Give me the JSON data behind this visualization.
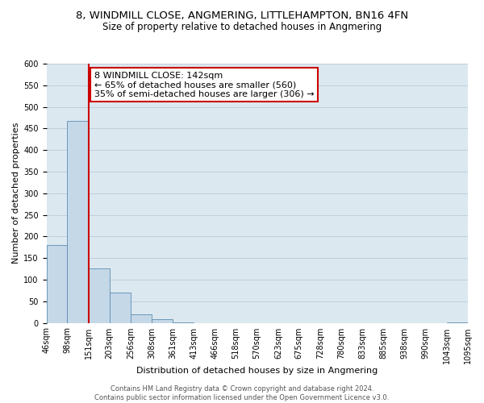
{
  "title1": "8, WINDMILL CLOSE, ANGMERING, LITTLEHAMPTON, BN16 4FN",
  "title2": "Size of property relative to detached houses in Angmering",
  "xlabel": "Distribution of detached houses by size in Angmering",
  "ylabel": "Number of detached properties",
  "bin_edges": [
    46,
    98,
    151,
    203,
    256,
    308,
    361,
    413,
    466,
    518,
    570,
    623,
    675,
    728,
    780,
    833,
    885,
    938,
    990,
    1043,
    1095
  ],
  "bin_labels": [
    "46sqm",
    "98sqm",
    "151sqm",
    "203sqm",
    "256sqm",
    "308sqm",
    "361sqm",
    "413sqm",
    "466sqm",
    "518sqm",
    "570sqm",
    "623sqm",
    "675sqm",
    "728sqm",
    "780sqm",
    "833sqm",
    "885sqm",
    "938sqm",
    "990sqm",
    "1043sqm",
    "1095sqm"
  ],
  "bar_heights": [
    180,
    468,
    126,
    70,
    20,
    8,
    2,
    0,
    0,
    0,
    0,
    0,
    0,
    0,
    0,
    0,
    0,
    0,
    0,
    2
  ],
  "bar_color": "#c5d8e8",
  "bar_edge_color": "#5a8db0",
  "ylim": [
    0,
    600
  ],
  "yticks": [
    0,
    50,
    100,
    150,
    200,
    250,
    300,
    350,
    400,
    450,
    500,
    550,
    600
  ],
  "property_line_x": 151,
  "property_line_color": "#cc0000",
  "annotation_line1": "8 WINDMILL CLOSE: 142sqm",
  "annotation_line2": "← 65% of detached houses are smaller (560)",
  "annotation_line3": "35% of semi-detached houses are larger (306) →",
  "annotation_edge_color": "#cc0000",
  "footer1": "Contains HM Land Registry data © Crown copyright and database right 2024.",
  "footer2": "Contains public sector information licensed under the Open Government Licence v3.0.",
  "plot_background": "#dce8f0",
  "grid_color": "#b8ccd8",
  "title1_fontsize": 9.5,
  "title2_fontsize": 8.5,
  "xlabel_fontsize": 8,
  "ylabel_fontsize": 8,
  "tick_fontsize": 7,
  "annotation_fontsize": 8,
  "footer_fontsize": 6
}
